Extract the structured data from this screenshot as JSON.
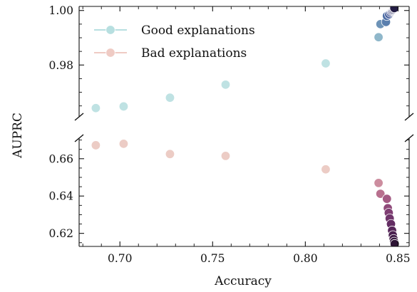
{
  "chart_data": {
    "type": "scatter",
    "title": "",
    "xlabel": "Accuracy",
    "ylabel": "AUPRC",
    "broken_y_axis": true,
    "grid": false,
    "legend_position": "top-left",
    "xlim": [
      0.678,
      0.856
    ],
    "x_ticks": [
      0.7,
      0.75,
      0.8,
      0.85
    ],
    "x_tick_labels": [
      "0.70",
      "0.75",
      "0.80",
      "0.85"
    ],
    "panels": [
      {
        "name": "upper",
        "ylim": [
          0.961,
          1.0015
        ],
        "y_ticks": [
          0.98,
          1.0
        ],
        "y_tick_labels": [
          "0.98",
          "1.00"
        ]
      },
      {
        "name": "lower",
        "ylim": [
          0.613,
          0.671
        ],
        "y_ticks": [
          0.62,
          0.64,
          0.66
        ],
        "y_tick_labels": [
          "0.62",
          "0.64",
          "0.66"
        ]
      }
    ],
    "series": [
      {
        "name": "Good explanations",
        "legend_color": "#b7dfe0",
        "panel": "upper",
        "points": [
          {
            "x": 0.687,
            "y": 0.9642,
            "color": "#bfe2e3"
          },
          {
            "x": 0.702,
            "y": 0.9648,
            "color": "#bfe2e3"
          },
          {
            "x": 0.727,
            "y": 0.968,
            "color": "#bfe2e3"
          },
          {
            "x": 0.757,
            "y": 0.9728,
            "color": "#bfe2e3"
          },
          {
            "x": 0.811,
            "y": 0.9806,
            "color": "#bfe2e3"
          },
          {
            "x": 0.8395,
            "y": 0.9902,
            "color": "#8fb7ca"
          },
          {
            "x": 0.8405,
            "y": 0.995,
            "color": "#6d93b7"
          },
          {
            "x": 0.8435,
            "y": 0.9958,
            "color": "#5a7fae"
          },
          {
            "x": 0.844,
            "y": 0.998,
            "color": "#4e6ea6"
          },
          {
            "x": 0.8452,
            "y": 0.9986,
            "color": "#465f9c"
          },
          {
            "x": 0.846,
            "y": 0.9992,
            "color": "#3f5291"
          },
          {
            "x": 0.8465,
            "y": 0.9996,
            "color": "#394686"
          },
          {
            "x": 0.8468,
            "y": 0.9999,
            "color": "#333b78"
          },
          {
            "x": 0.8472,
            "y": 1.0001,
            "color": "#2e326a"
          },
          {
            "x": 0.8475,
            "y": 1.0004,
            "color": "#2a2a5d"
          },
          {
            "x": 0.8478,
            "y": 1.0007,
            "color": "#262350"
          },
          {
            "x": 0.848,
            "y": 1.0009,
            "color": "#231d45"
          }
        ]
      },
      {
        "name": "Bad explanations",
        "legend_color": "#efcbc4",
        "panel": "lower",
        "points": [
          {
            "x": 0.687,
            "y": 0.6672,
            "color": "#ecccc5"
          },
          {
            "x": 0.702,
            "y": 0.668,
            "color": "#ecccc5"
          },
          {
            "x": 0.727,
            "y": 0.6625,
            "color": "#ecccc5"
          },
          {
            "x": 0.757,
            "y": 0.6615,
            "color": "#ecccc5"
          },
          {
            "x": 0.811,
            "y": 0.6543,
            "color": "#ecccc5"
          },
          {
            "x": 0.8395,
            "y": 0.647,
            "color": "#cc8d9f"
          },
          {
            "x": 0.8405,
            "y": 0.6412,
            "color": "#b8708e"
          },
          {
            "x": 0.844,
            "y": 0.6385,
            "color": "#a45a83"
          },
          {
            "x": 0.8445,
            "y": 0.6335,
            "color": "#8f4979"
          },
          {
            "x": 0.845,
            "y": 0.631,
            "color": "#7f3e73"
          },
          {
            "x": 0.8455,
            "y": 0.628,
            "color": "#70356b"
          },
          {
            "x": 0.8462,
            "y": 0.625,
            "color": "#632d63"
          },
          {
            "x": 0.8468,
            "y": 0.6215,
            "color": "#562659"
          },
          {
            "x": 0.8472,
            "y": 0.619,
            "color": "#4a204f"
          },
          {
            "x": 0.8476,
            "y": 0.617,
            "color": "#3f1b46"
          },
          {
            "x": 0.8479,
            "y": 0.6155,
            "color": "#35173d"
          },
          {
            "x": 0.8482,
            "y": 0.6143,
            "color": "#2d1435"
          }
        ]
      }
    ]
  }
}
